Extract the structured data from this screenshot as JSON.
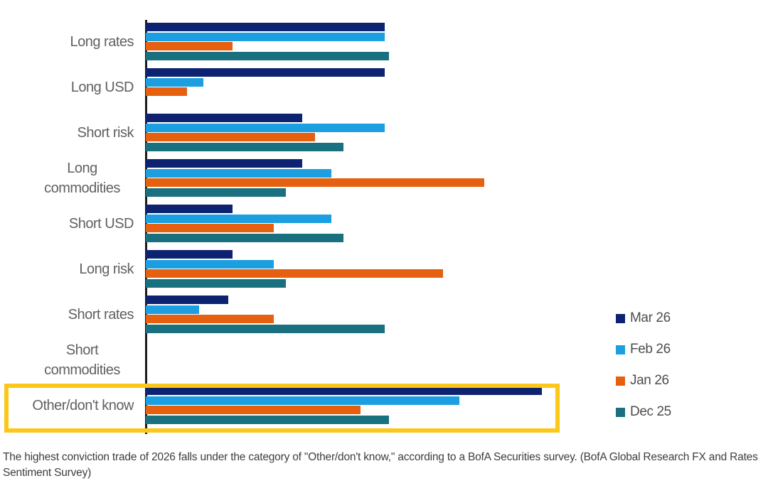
{
  "figure": {
    "caption": "The highest conviction trade of 2026 falls under the category of \"Other/don't know,\" according to a BofA Securities survey. (BofA Global Research FX and Rates Sentiment Survey)"
  },
  "chart_data": {
    "type": "bar",
    "orientation": "horizontal",
    "title": "",
    "xlabel": "",
    "ylabel": "",
    "grid": false,
    "legend_position": "right",
    "value_axis": {
      "visible": false,
      "units": "percent of plot width (no tick labels shown in image)",
      "range": [
        0,
        100
      ]
    },
    "categories": [
      "Long rates",
      "Long USD",
      "Short risk",
      "Long commodities",
      "Short USD",
      "Long risk",
      "Short rates",
      "Short commodities",
      "Other/don't know"
    ],
    "series": [
      {
        "name": "Mar 26",
        "color": "#0E2272",
        "values": [
          58,
          58,
          38,
          38,
          21,
          21,
          20,
          0,
          96
        ]
      },
      {
        "name": "Feb 26",
        "color": "#1B9FE0",
        "values": [
          58,
          14,
          58,
          45,
          45,
          31,
          13,
          0,
          76
        ]
      },
      {
        "name": "Jan 26",
        "color": "#E56110",
        "values": [
          21,
          10,
          41,
          82,
          31,
          72,
          31,
          0,
          52
        ]
      },
      {
        "name": "Dec 25",
        "color": "#19707E",
        "values": [
          59,
          0,
          48,
          34,
          48,
          34,
          58,
          0,
          59
        ]
      }
    ],
    "highlight": {
      "category": "Other/don't know",
      "shape": "rectangle-outline",
      "color": "#FBC81A"
    }
  }
}
